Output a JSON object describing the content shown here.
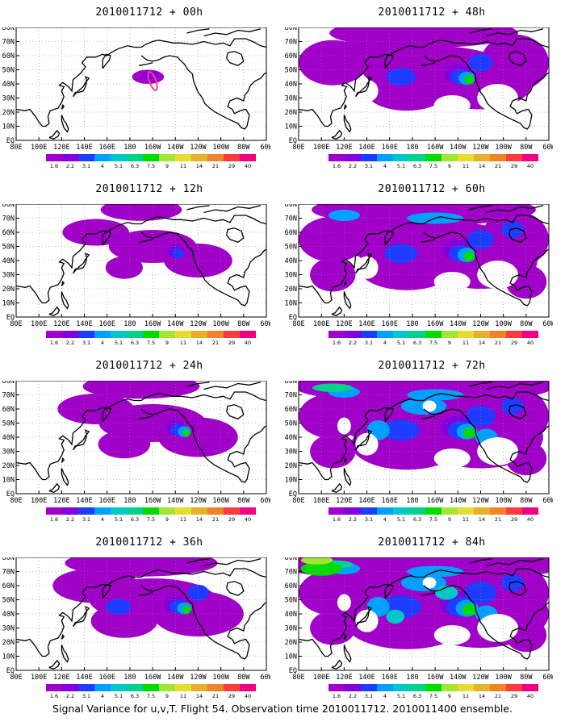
{
  "panels": [
    {
      "title": "2010011712 + 00h",
      "intensity": 0
    },
    {
      "title": "2010011712 + 12h",
      "intensity": 1
    },
    {
      "title": "2010011712 + 24h",
      "intensity": 2
    },
    {
      "title": "2010011712 + 36h",
      "intensity": 3
    },
    {
      "title": "2010011712 + 48h",
      "intensity": 4
    },
    {
      "title": "2010011712 + 60h",
      "intensity": 5
    },
    {
      "title": "2010011712 + 72h",
      "intensity": 6
    },
    {
      "title": "2010011712 + 84h",
      "intensity": 7
    }
  ],
  "axes": {
    "x_ticks": [
      "80E",
      "100E",
      "120E",
      "140E",
      "160E",
      "180",
      "160W",
      "140W",
      "120W",
      "100W",
      "80W",
      "60W"
    ],
    "y_ticks": [
      "EQ",
      "10N",
      "20N",
      "30N",
      "40N",
      "50N",
      "60N",
      "70N",
      "80N"
    ]
  },
  "legend": {
    "levels": [
      "1.6",
      "2.2",
      "3.1",
      "4",
      "5.1",
      "6.3",
      "7.5",
      "9",
      "11",
      "14",
      "21",
      "29",
      "40"
    ],
    "colors": [
      "#a000c8",
      "#8200dc",
      "#1e3cff",
      "#00a0ff",
      "#00c8c8",
      "#00d28c",
      "#00dc00",
      "#a0e632",
      "#e6dc32",
      "#e6af2d",
      "#f08228",
      "#fa3c3c",
      "#f00082"
    ]
  },
  "footer": "Signal Variance for u,v,T. Flight 54. Observation time 2010011712. 2010011400 ensemble."
}
